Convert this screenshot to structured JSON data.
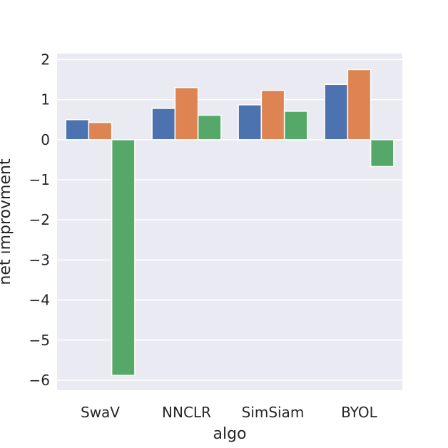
{
  "chart_data": {
    "type": "bar",
    "title": "",
    "xlabel": "algo",
    "ylabel": "net improvment",
    "categories": [
      "SwaV",
      "NNCLR",
      "SimSiam",
      "BYOL"
    ],
    "series": [
      {
        "values": [
          0.5,
          0.78,
          0.87,
          1.38
        ]
      },
      {
        "values": [
          0.43,
          1.3,
          1.23,
          1.75
        ]
      },
      {
        "values": [
          -5.88,
          0.61,
          0.71,
          -0.67
        ]
      }
    ],
    "ylim": [
      -6.25,
      2.15
    ],
    "yticks": [
      2,
      1,
      0,
      -1,
      -2,
      -3,
      -4,
      -5,
      -6
    ],
    "ytick_labels": [
      "2",
      "1",
      "0",
      "−1",
      "−2",
      "−3",
      "−4",
      "−5",
      "−6"
    ],
    "grid": true,
    "legend": false,
    "colors": {
      "series": [
        "#4c72b0",
        "#dd8452",
        "#55a868"
      ],
      "background": "#eaeaf2",
      "grid": "#ffffff",
      "text": "#262626"
    }
  }
}
